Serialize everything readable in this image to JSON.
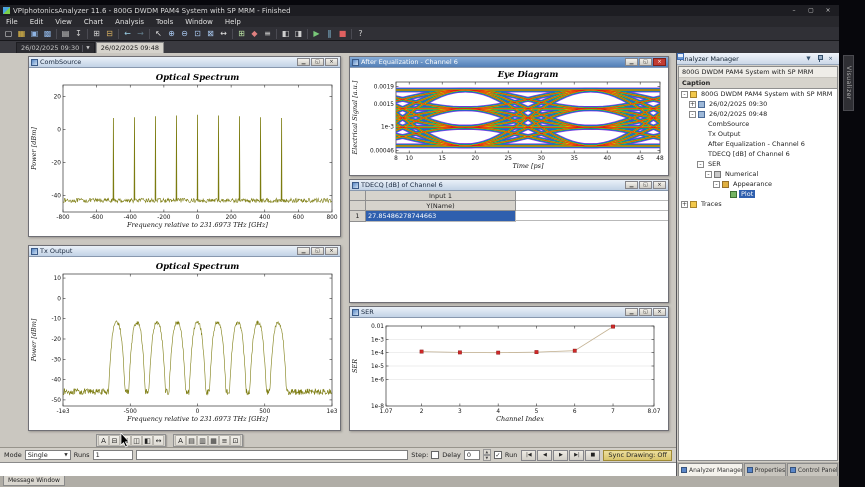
{
  "window": {
    "title": "VPIphotonicsAnalyzer 11.6 - 800G DWDM PAM4 System with SP MRM - Finished",
    "minimize_glyph": "–",
    "maximize_glyph": "▢",
    "close_glyph": "×"
  },
  "mdi_buttons": {
    "minimize": "▁",
    "restore": "◱",
    "close": "×"
  },
  "menu": {
    "items": [
      "File",
      "Edit",
      "View",
      "Chart",
      "Analysis",
      "Tools",
      "Window",
      "Help"
    ]
  },
  "toolbar": {
    "buttons": [
      {
        "name": "new-icon",
        "glyph": "▢",
        "color": "#e8e8e8"
      },
      {
        "name": "open-icon",
        "glyph": "▦",
        "color": "#e7c04a"
      },
      {
        "name": "save-icon",
        "glyph": "▣",
        "color": "#8fb4e3"
      },
      {
        "name": "save-all-icon",
        "glyph": "▩",
        "color": "#8fb4e3"
      },
      {
        "sep": true
      },
      {
        "name": "print-icon",
        "glyph": "▤",
        "color": "#cfcfcf"
      },
      {
        "name": "export-icon",
        "glyph": "↧",
        "color": "#cfcfcf"
      },
      {
        "sep": true
      },
      {
        "name": "copy-icon",
        "glyph": "⊞",
        "color": "#cfcfcf"
      },
      {
        "name": "paste-icon",
        "glyph": "⊟",
        "color": "#d8b060"
      },
      {
        "sep": true
      },
      {
        "name": "undo-icon",
        "glyph": "←",
        "color": "#9ad0e8"
      },
      {
        "name": "redo-icon",
        "glyph": "→",
        "color": "#9ad0e8",
        "dim": true
      },
      {
        "sep": true
      },
      {
        "name": "cursor-icon",
        "glyph": "↖",
        "color": "#e0e0e0"
      },
      {
        "name": "zoom-in-icon",
        "glyph": "⊕",
        "color": "#a8c8f0"
      },
      {
        "name": "zoom-out-icon",
        "glyph": "⊖",
        "color": "#a8c8f0"
      },
      {
        "name": "zoom-region-icon",
        "glyph": "⊡",
        "color": "#a8c8f0"
      },
      {
        "name": "zoom-fit-icon",
        "glyph": "⊠",
        "color": "#a8c8f0"
      },
      {
        "name": "pan-icon",
        "glyph": "↔",
        "color": "#e0e0e0"
      },
      {
        "sep": true
      },
      {
        "name": "grid-icon",
        "glyph": "⊞",
        "color": "#b8e0a0"
      },
      {
        "name": "markers-icon",
        "glyph": "◆",
        "color": "#e08080"
      },
      {
        "name": "legend-icon",
        "glyph": "≡",
        "color": "#cfcfcf"
      },
      {
        "sep": true
      },
      {
        "name": "tile-icon",
        "glyph": "◧",
        "color": "#cfcfcf"
      },
      {
        "name": "cascade-icon",
        "glyph": "◨",
        "color": "#cfcfcf"
      },
      {
        "sep": true
      },
      {
        "name": "run-icon",
        "glyph": "▶",
        "color": "#78c878"
      },
      {
        "name": "pause-icon",
        "glyph": "∥",
        "color": "#8fd0f0"
      },
      {
        "name": "stop-icon",
        "glyph": "■",
        "color": "#e06060"
      },
      {
        "sep": true
      },
      {
        "name": "help-icon",
        "glyph": "?",
        "color": "#cfcfcf"
      }
    ]
  },
  "date_tabs": [
    {
      "label": "26/02/2025 09:30",
      "selected": false,
      "has_dropdown": true,
      "dropdown_glyph": "▼"
    },
    {
      "label": "26/02/2025 09:48",
      "selected": true,
      "has_dropdown": false
    }
  ],
  "windows": {
    "comb": {
      "title": "CombSource"
    },
    "tx": {
      "title": "Tx Output"
    },
    "eye": {
      "title": "After Equalization - Channel 6"
    },
    "tdecq": {
      "title": "TDECQ [dB] of Channel 6",
      "header_top": "Input 1",
      "header_sub": "Y(Name)",
      "row_label": "1",
      "value": "27.85486278744663"
    },
    "ser": {
      "title": "SER"
    }
  },
  "mini_toolbars": [
    {
      "buttons": [
        {
          "name": "text-annotation-icon",
          "glyph": "A"
        },
        {
          "name": "collapse-canvas-icon",
          "glyph": "⊟"
        },
        {
          "name": "expand-canvas-icon",
          "glyph": "⊞"
        },
        {
          "name": "split-horizontal-icon",
          "glyph": "◫"
        },
        {
          "name": "split-vertical-icon",
          "glyph": "◧"
        },
        {
          "name": "fit-width-icon",
          "glyph": "↔"
        }
      ]
    },
    {
      "buttons": [
        {
          "name": "text-annotation-icon",
          "glyph": "A"
        },
        {
          "name": "layout-rows-icon",
          "glyph": "▤"
        },
        {
          "name": "layout-columns-icon",
          "glyph": "▥"
        },
        {
          "name": "layout-grid-icon",
          "glyph": "▦"
        },
        {
          "name": "legend-icon",
          "glyph": "≡"
        },
        {
          "name": "frame-icon",
          "glyph": "⊡"
        }
      ]
    }
  ],
  "analyzer": {
    "title": "Analyzer Manager",
    "menu_glyph": "▼",
    "close_glyph": "×",
    "root_caption": "800G DWDM PAM4 System with SP MRM",
    "column_header": "Caption",
    "tree": [
      {
        "label": "800G DWDM PAM4 System with SP MRM",
        "depth": 0,
        "icon": "folder",
        "exp": "-"
      },
      {
        "label": "26/02/2025 09:30",
        "depth": 1,
        "icon": "result",
        "exp": "+"
      },
      {
        "label": "26/02/2025 09:48",
        "depth": 1,
        "icon": "result",
        "exp": "-"
      },
      {
        "label": "CombSource",
        "depth": 2,
        "icon": "chart"
      },
      {
        "label": "Tx Output",
        "depth": 2,
        "icon": "chart"
      },
      {
        "label": "After Equalization - Channel 6",
        "depth": 2,
        "icon": "chart"
      },
      {
        "label": "TDECQ [dB] of Channel 6",
        "depth": 2,
        "icon": "chart"
      },
      {
        "label": "SER",
        "depth": 2,
        "icon": "chart",
        "exp": "-"
      },
      {
        "label": "Numerical",
        "depth": 3,
        "icon": "numerical",
        "exp": "-"
      },
      {
        "label": "Appearance",
        "depth": 4,
        "icon": "appearance",
        "exp": "-"
      },
      {
        "label": "Plot",
        "depth": 5,
        "icon": "plot",
        "selected": true
      },
      {
        "label": "Traces",
        "depth": 0,
        "icon": "folder",
        "exp": "+"
      }
    ]
  },
  "panel_tabs": [
    {
      "label": "Analyzer Manager",
      "selected": true
    },
    {
      "label": "Properties",
      "selected": false
    },
    {
      "label": "Control Panel",
      "selected": false
    }
  ],
  "controls": {
    "mode_label": "Mode",
    "mode_value": "Single",
    "runs_label": "Runs",
    "runs_value": "1",
    "command_value": "",
    "step_label": "Step:",
    "delay_label": "Delay",
    "delay_value": "0",
    "run_label": "Run",
    "check_glyph": "✓",
    "dropdown_glyph": "▼",
    "spin_up": "▲",
    "spin_down": "▼",
    "playback": [
      {
        "name": "rewind-button",
        "glyph": "|◀"
      },
      {
        "name": "step-back-button",
        "glyph": "◀"
      },
      {
        "name": "run-button",
        "glyph": "▶"
      },
      {
        "name": "step-forward-button",
        "glyph": "▶|"
      },
      {
        "name": "stop-button",
        "glyph": "■"
      }
    ],
    "sync_button": "Sync Drawing: Off"
  },
  "message_window": {
    "tab_label": "Message Window"
  },
  "side_tab": {
    "label": "Visualizer"
  },
  "chart_data": [
    {
      "id": "comb",
      "type": "line",
      "title": "Optical Spectrum",
      "xlabel": "Frequency relative to 231.6973 THz [GHz]",
      "ylabel": "Power [dBm]",
      "xlim": [
        -800,
        800
      ],
      "ylim": [
        -50,
        27
      ],
      "xticks": [
        {
          "v": -800,
          "l": "-800"
        },
        {
          "v": -600,
          "l": "-600"
        },
        {
          "v": -400,
          "l": "-400"
        },
        {
          "v": -200,
          "l": "-200"
        },
        {
          "v": 0,
          "l": "0"
        },
        {
          "v": 200,
          "l": "200"
        },
        {
          "v": 400,
          "l": "400"
        },
        {
          "v": 600,
          "l": "600"
        },
        {
          "v": 800,
          "l": "800"
        }
      ],
      "yticks": [
        {
          "v": 20,
          "l": "20"
        },
        {
          "v": 0,
          "l": "0"
        },
        {
          "v": -20,
          "l": "-20"
        },
        {
          "v": -40,
          "l": "-40"
        }
      ],
      "noise_floor_dbm": -43,
      "comb_start_ghz": -500,
      "comb_spacing_ghz": 125,
      "comb_count": 9,
      "peak_dbm": 9,
      "color": "#7c7c10"
    },
    {
      "id": "tx",
      "type": "line",
      "title": "Optical Spectrum",
      "xlabel": "Frequency relative to 231.6973 THz [GHz]",
      "ylabel": "Power [dBm]",
      "xlim": [
        -1000,
        1000
      ],
      "ylim": [
        -53,
        12
      ],
      "xticks": [
        {
          "v": -1000,
          "l": "-1e3"
        },
        {
          "v": -500,
          "l": "-500"
        },
        {
          "v": 0,
          "l": "0"
        },
        {
          "v": 500,
          "l": "500"
        },
        {
          "v": 1000,
          "l": "1e3"
        }
      ],
      "yticks": [
        {
          "v": 10,
          "l": "10"
        },
        {
          "v": 0,
          "l": "0"
        },
        {
          "v": -10,
          "l": "-10"
        },
        {
          "v": -20,
          "l": "-20"
        },
        {
          "v": -30,
          "l": "-30"
        },
        {
          "v": -40,
          "l": "-40"
        },
        {
          "v": -50,
          "l": "-50"
        }
      ],
      "noise_floor_dbm": -46,
      "channel_start_ghz": -600,
      "channel_spacing_ghz": 150,
      "channel_count": 9,
      "peak_dbm": -12,
      "color": "#7c7c10"
    },
    {
      "id": "eye",
      "type": "eye",
      "title": "Eye Diagram",
      "xlabel": "Time [ps]",
      "ylabel": "Electrical Signal [a.u.]",
      "xlim": [
        8,
        48
      ],
      "ylim": [
        0.0004,
        0.002
      ],
      "xticks": [
        {
          "v": 8,
          "l": "8"
        },
        {
          "v": 10,
          "l": "10"
        },
        {
          "v": 15,
          "l": "15"
        },
        {
          "v": 20,
          "l": "20"
        },
        {
          "v": 25,
          "l": "25"
        },
        {
          "v": 30,
          "l": "30"
        },
        {
          "v": 35,
          "l": "35"
        },
        {
          "v": 40,
          "l": "40"
        },
        {
          "v": 45,
          "l": "45"
        },
        {
          "v": 48,
          "l": "48"
        }
      ],
      "yticks": [
        {
          "v": 0.00046,
          "l": "0.00046"
        },
        {
          "v": 0.001,
          "l": "1e-3"
        },
        {
          "v": 0.0015,
          "l": "0.0015"
        },
        {
          "v": 0.0019,
          "l": "0.0019"
        }
      ],
      "levels": [
        0.00056,
        0.00098,
        0.0014,
        0.00182
      ],
      "period_ps": 19,
      "crossings_ps": [
        9,
        28,
        47
      ],
      "density_layers": [
        [
          "#8a2be2",
          5,
          0.85
        ],
        [
          "#4040d8",
          4.1,
          0.85
        ],
        [
          "#1878d0",
          3.3,
          0.9
        ],
        [
          "#00a0a0",
          2.6,
          0.9
        ],
        [
          "#20aa20",
          2.0,
          0.9
        ],
        [
          "#a0cc00",
          1.5,
          0.95
        ],
        [
          "#f0d000",
          1.1,
          0.95
        ],
        [
          "#f08000",
          0.8,
          1
        ],
        [
          "#e01818",
          0.55,
          1
        ]
      ]
    },
    {
      "id": "ser",
      "type": "scatter-line",
      "ylog": true,
      "xlabel": "Channel Index",
      "ylabel": "SER",
      "xlim": [
        1.07,
        8.07
      ],
      "ylim_exp": [
        -8,
        -2
      ],
      "xticks": [
        {
          "v": 1.07,
          "l": "1.07"
        },
        {
          "v": 2,
          "l": "2"
        },
        {
          "v": 3,
          "l": "3"
        },
        {
          "v": 4,
          "l": "4"
        },
        {
          "v": 5,
          "l": "5"
        },
        {
          "v": 6,
          "l": "6"
        },
        {
          "v": 7,
          "l": "7"
        },
        {
          "v": 8.07,
          "l": "8.07"
        }
      ],
      "yticks": [
        {
          "e": -2,
          "l": "0.01"
        },
        {
          "e": -3,
          "l": "1e-3"
        },
        {
          "e": -4,
          "l": "1e-4"
        },
        {
          "e": -5,
          "l": "1e-5"
        },
        {
          "e": -6,
          "l": "1e-6"
        },
        {
          "e": -8,
          "l": "1e-8"
        }
      ],
      "grid": true,
      "x": [
        2,
        3,
        4,
        5,
        6,
        7
      ],
      "y": [
        0.00012,
        0.000105,
        0.0001,
        0.00011,
        0.00014,
        0.009
      ],
      "line_color": "#c4b394",
      "marker_color": "#d02828"
    }
  ]
}
